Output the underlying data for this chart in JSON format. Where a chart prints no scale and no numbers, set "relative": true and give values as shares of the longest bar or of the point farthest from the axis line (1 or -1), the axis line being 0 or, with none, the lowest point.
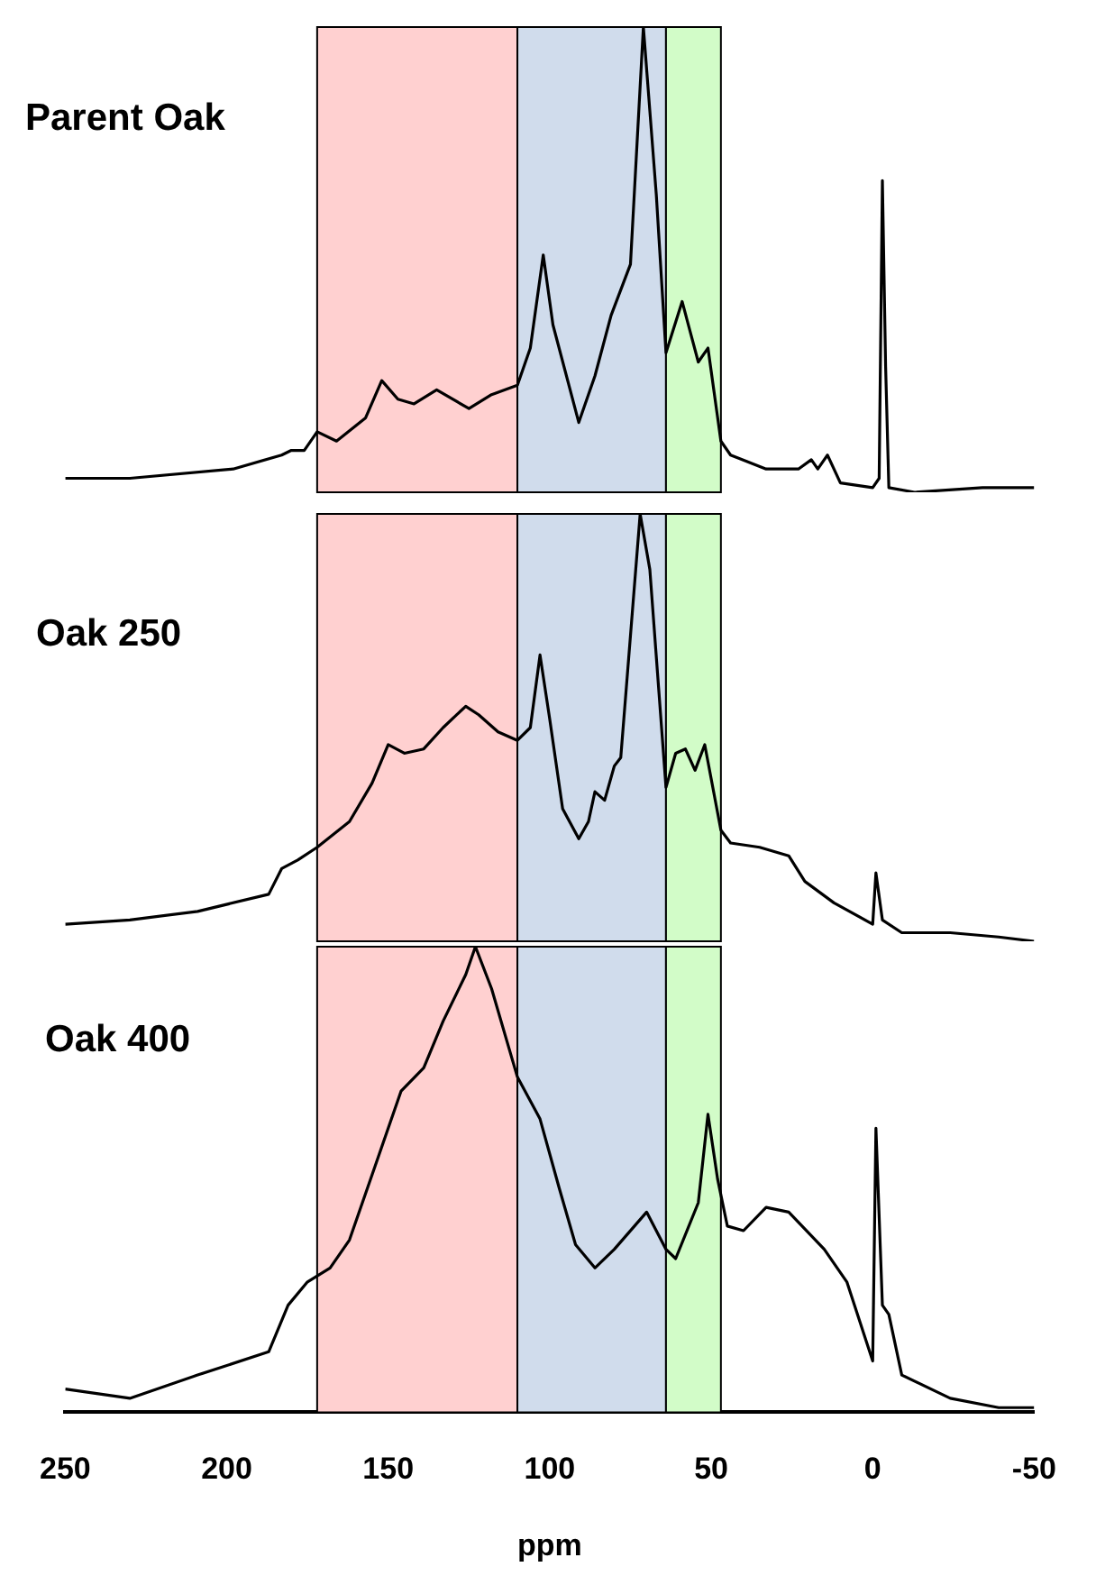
{
  "chart_data": [
    {
      "type": "line",
      "title": "Parent Oak",
      "relative": true,
      "xlim": [
        250,
        -50
      ],
      "tick_labels": false,
      "grid": false,
      "legend": false,
      "marker": "none",
      "bands": [
        {
          "axis": "x",
          "from": 172,
          "to": 110,
          "color": "#ffd0d0"
        },
        {
          "axis": "x",
          "from": 110,
          "to": 64,
          "color": "#d0dcec"
        },
        {
          "axis": "x",
          "from": 64,
          "to": 47,
          "color": "#d2fcc8"
        }
      ],
      "x": [
        250,
        230,
        198,
        183,
        180,
        176,
        172,
        166,
        157,
        152,
        147,
        142,
        135,
        125,
        118,
        110,
        106,
        102,
        99,
        91,
        86,
        81,
        75,
        71,
        67,
        64,
        59,
        54,
        51,
        47,
        44,
        33,
        23,
        19,
        17,
        14,
        10,
        0,
        -2,
        -3,
        -4,
        -5,
        -13,
        -34,
        -50
      ],
      "series": [
        {
          "color": "#000000",
          "values": [
            0.03,
            0.03,
            0.05,
            0.08,
            0.09,
            0.09,
            0.13,
            0.11,
            0.16,
            0.24,
            0.2,
            0.19,
            0.22,
            0.18,
            0.21,
            0.23,
            0.31,
            0.51,
            0.36,
            0.15,
            0.25,
            0.38,
            0.49,
            1.0,
            0.64,
            0.3,
            0.41,
            0.28,
            0.31,
            0.11,
            0.08,
            0.05,
            0.05,
            0.07,
            0.05,
            0.08,
            0.02,
            0.01,
            0.03,
            0.67,
            0.27,
            0.01,
            0,
            0.01,
            0.01
          ]
        }
      ]
    },
    {
      "type": "line",
      "title": "Oak 250",
      "relative": true,
      "xlim": [
        250,
        -50
      ],
      "tick_labels": false,
      "grid": false,
      "legend": false,
      "marker": "none",
      "bands": [
        {
          "axis": "x",
          "from": 172,
          "to": 110,
          "color": "#ffd0d0"
        },
        {
          "axis": "x",
          "from": 110,
          "to": 64,
          "color": "#d0dcec"
        },
        {
          "axis": "x",
          "from": 64,
          "to": 47,
          "color": "#d2fcc8"
        }
      ],
      "x": [
        250,
        230,
        209,
        187,
        183,
        178,
        172,
        162,
        155,
        150,
        145,
        139,
        133,
        126,
        122,
        116,
        110,
        106,
        103,
        100,
        96,
        91,
        88,
        86,
        83,
        80,
        78,
        72,
        69,
        64,
        61,
        58,
        55,
        52,
        47,
        44,
        35,
        26,
        21,
        12,
        0,
        -1,
        -3,
        -9,
        -24,
        -39,
        -50
      ],
      "series": [
        {
          "color": "#000000",
          "values": [
            0.04,
            0.05,
            0.07,
            0.11,
            0.17,
            0.19,
            0.22,
            0.28,
            0.37,
            0.46,
            0.44,
            0.45,
            0.5,
            0.55,
            0.53,
            0.49,
            0.47,
            0.5,
            0.67,
            0.52,
            0.31,
            0.24,
            0.28,
            0.35,
            0.33,
            0.41,
            0.43,
            1.0,
            0.87,
            0.36,
            0.44,
            0.45,
            0.4,
            0.46,
            0.26,
            0.23,
            0.22,
            0.2,
            0.14,
            0.09,
            0.04,
            0.16,
            0.05,
            0.02,
            0.02,
            0.01,
            0
          ]
        }
      ]
    },
    {
      "type": "line",
      "title": "Oak 400",
      "xlabel": "ppm",
      "relative": true,
      "xlim": [
        250,
        -50
      ],
      "xticks": [
        250,
        200,
        150,
        100,
        50,
        0,
        -50
      ],
      "tick_labels": "x",
      "grid": false,
      "legend": false,
      "marker": "none",
      "bands": [
        {
          "axis": "x",
          "from": 172,
          "to": 110,
          "color": "#ffd0d0"
        },
        {
          "axis": "x",
          "from": 110,
          "to": 64,
          "color": "#d0dcec"
        },
        {
          "axis": "x",
          "from": 64,
          "to": 47,
          "color": "#d2fcc8"
        }
      ],
      "x": [
        250,
        230,
        209,
        187,
        181,
        175,
        168,
        162,
        154,
        146,
        139,
        133,
        126,
        123,
        118,
        110,
        103,
        97,
        92,
        86,
        80,
        70,
        64,
        61,
        54,
        51,
        48,
        45,
        40,
        33,
        26,
        15,
        8,
        0,
        -1,
        -3,
        -5,
        -9,
        -24,
        -39,
        -50
      ],
      "series": [
        {
          "color": "#000000",
          "values": [
            0.05,
            0.03,
            0.08,
            0.13,
            0.23,
            0.28,
            0.31,
            0.37,
            0.53,
            0.69,
            0.74,
            0.84,
            0.94,
            1.0,
            0.91,
            0.72,
            0.63,
            0.48,
            0.36,
            0.31,
            0.35,
            0.43,
            0.35,
            0.33,
            0.45,
            0.64,
            0.5,
            0.4,
            0.39,
            0.44,
            0.43,
            0.35,
            0.28,
            0.11,
            0.61,
            0.23,
            0.21,
            0.08,
            0.03,
            0.01,
            0.01
          ]
        }
      ]
    }
  ]
}
